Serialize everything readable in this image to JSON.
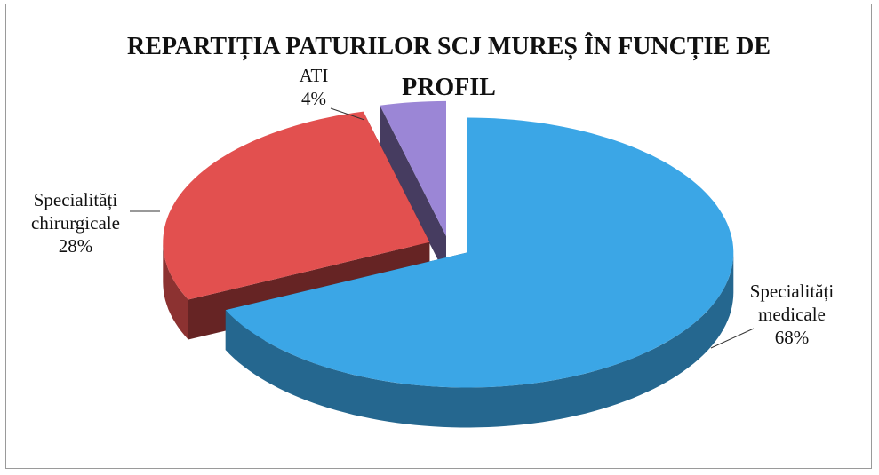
{
  "chart_data": {
    "type": "pie3d",
    "title": "REPARTIȚIA PATURILOR SCJ MUREȘ ÎN FUNCȚIE DE PROFIL",
    "categories": [
      "Specialități medicale",
      "Specialități chirurgicale",
      "ATI"
    ],
    "values": [
      68,
      28,
      4
    ],
    "value_labels": [
      "68%",
      "28%",
      "4%"
    ],
    "colors": [
      "#3ba6e6",
      "#e2504f",
      "#9b86d6"
    ]
  }
}
